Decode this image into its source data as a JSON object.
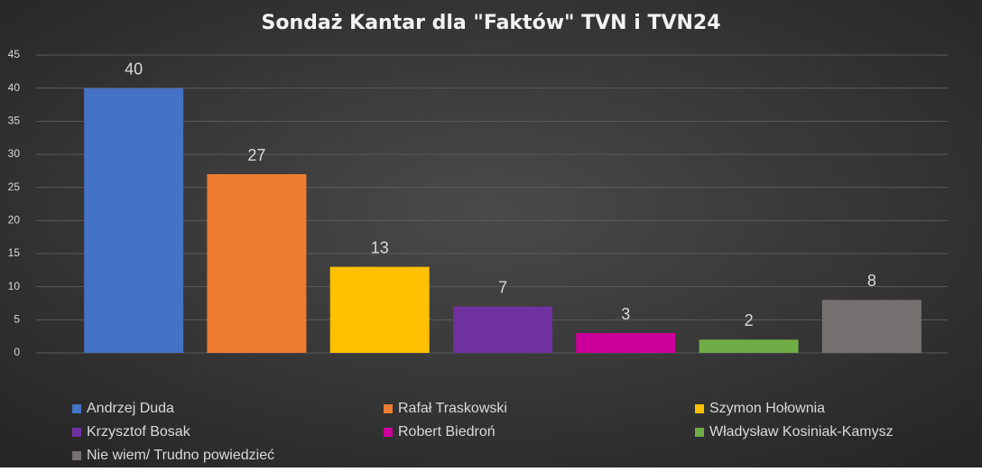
{
  "chart_data": {
    "type": "bar",
    "title": "Sondaż Kantar dla \"Faktów\" TVN i TVN24",
    "series": [
      {
        "name": "Andrzej Duda",
        "color": "#4472c4",
        "values": [
          40
        ]
      },
      {
        "name": "Rafał Traskowski",
        "color": "#ed7d31",
        "values": [
          27
        ]
      },
      {
        "name": "Szymon Hołownia",
        "color": "#ffc000",
        "values": [
          13
        ]
      },
      {
        "name": "Krzysztof Bosak",
        "color": "#7030a0",
        "values": [
          7
        ]
      },
      {
        "name": "Robert Biedroń",
        "color": "#cc0099",
        "values": [
          3
        ]
      },
      {
        "name": "Władysław Kosiniak-Kamysz",
        "color": "#70ad47",
        "values": [
          2
        ]
      },
      {
        "name": "Nie wiem/ Trudno powiedzieć",
        "color": "#767171",
        "values": [
          8
        ]
      }
    ],
    "ylim": [
      0,
      45
    ],
    "yticks": [
      0,
      5,
      10,
      15,
      20,
      25,
      30,
      35,
      40,
      45
    ],
    "grid": true,
    "legend": "bottom"
  }
}
